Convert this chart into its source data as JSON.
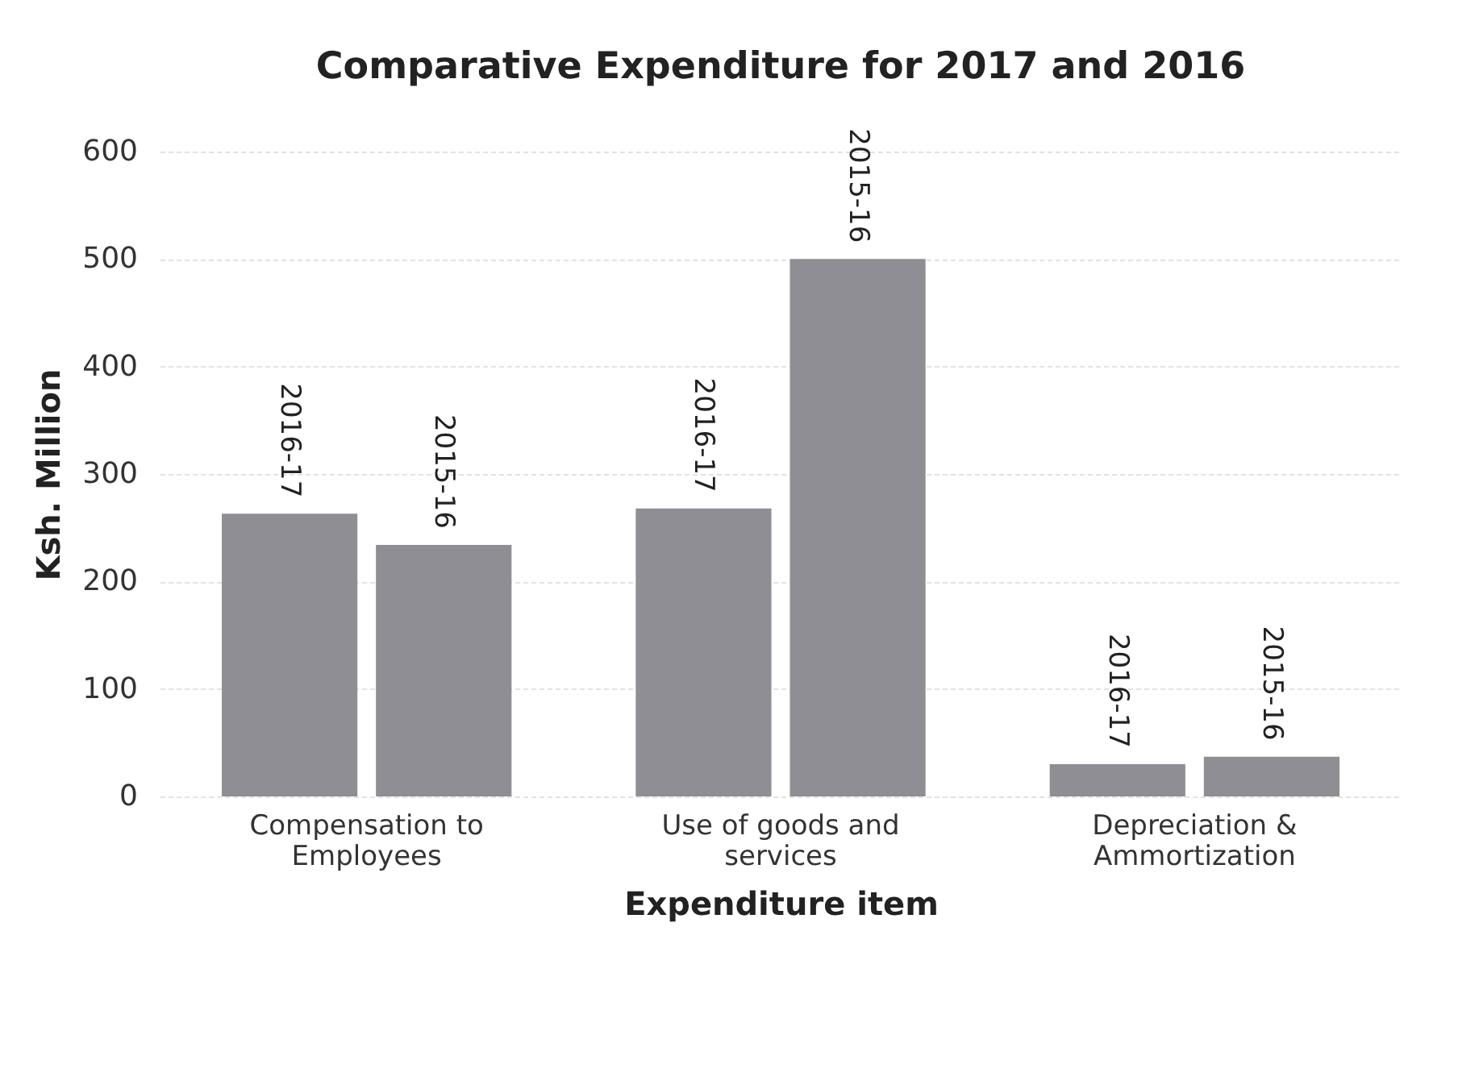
{
  "chart_data": {
    "type": "bar",
    "title": "Comparative  Expenditure for 2017 and 2016",
    "xlabel": "Expenditure item",
    "ylabel": "Ksh. Million",
    "categories": [
      "Compensation to Employees",
      "Use of goods and services",
      "Depreciation & Ammortization"
    ],
    "series": [
      {
        "name": "2016-17",
        "color": "#8e8e94",
        "values": [
          263,
          268,
          30
        ]
      },
      {
        "name": "2015-16",
        "color": "#8e8e94",
        "values": [
          234,
          500,
          37
        ]
      }
    ],
    "ylim": [
      0,
      600
    ],
    "yticks": [
      0,
      100,
      200,
      300,
      400,
      500,
      600
    ],
    "grid": "y",
    "legend": false
  }
}
